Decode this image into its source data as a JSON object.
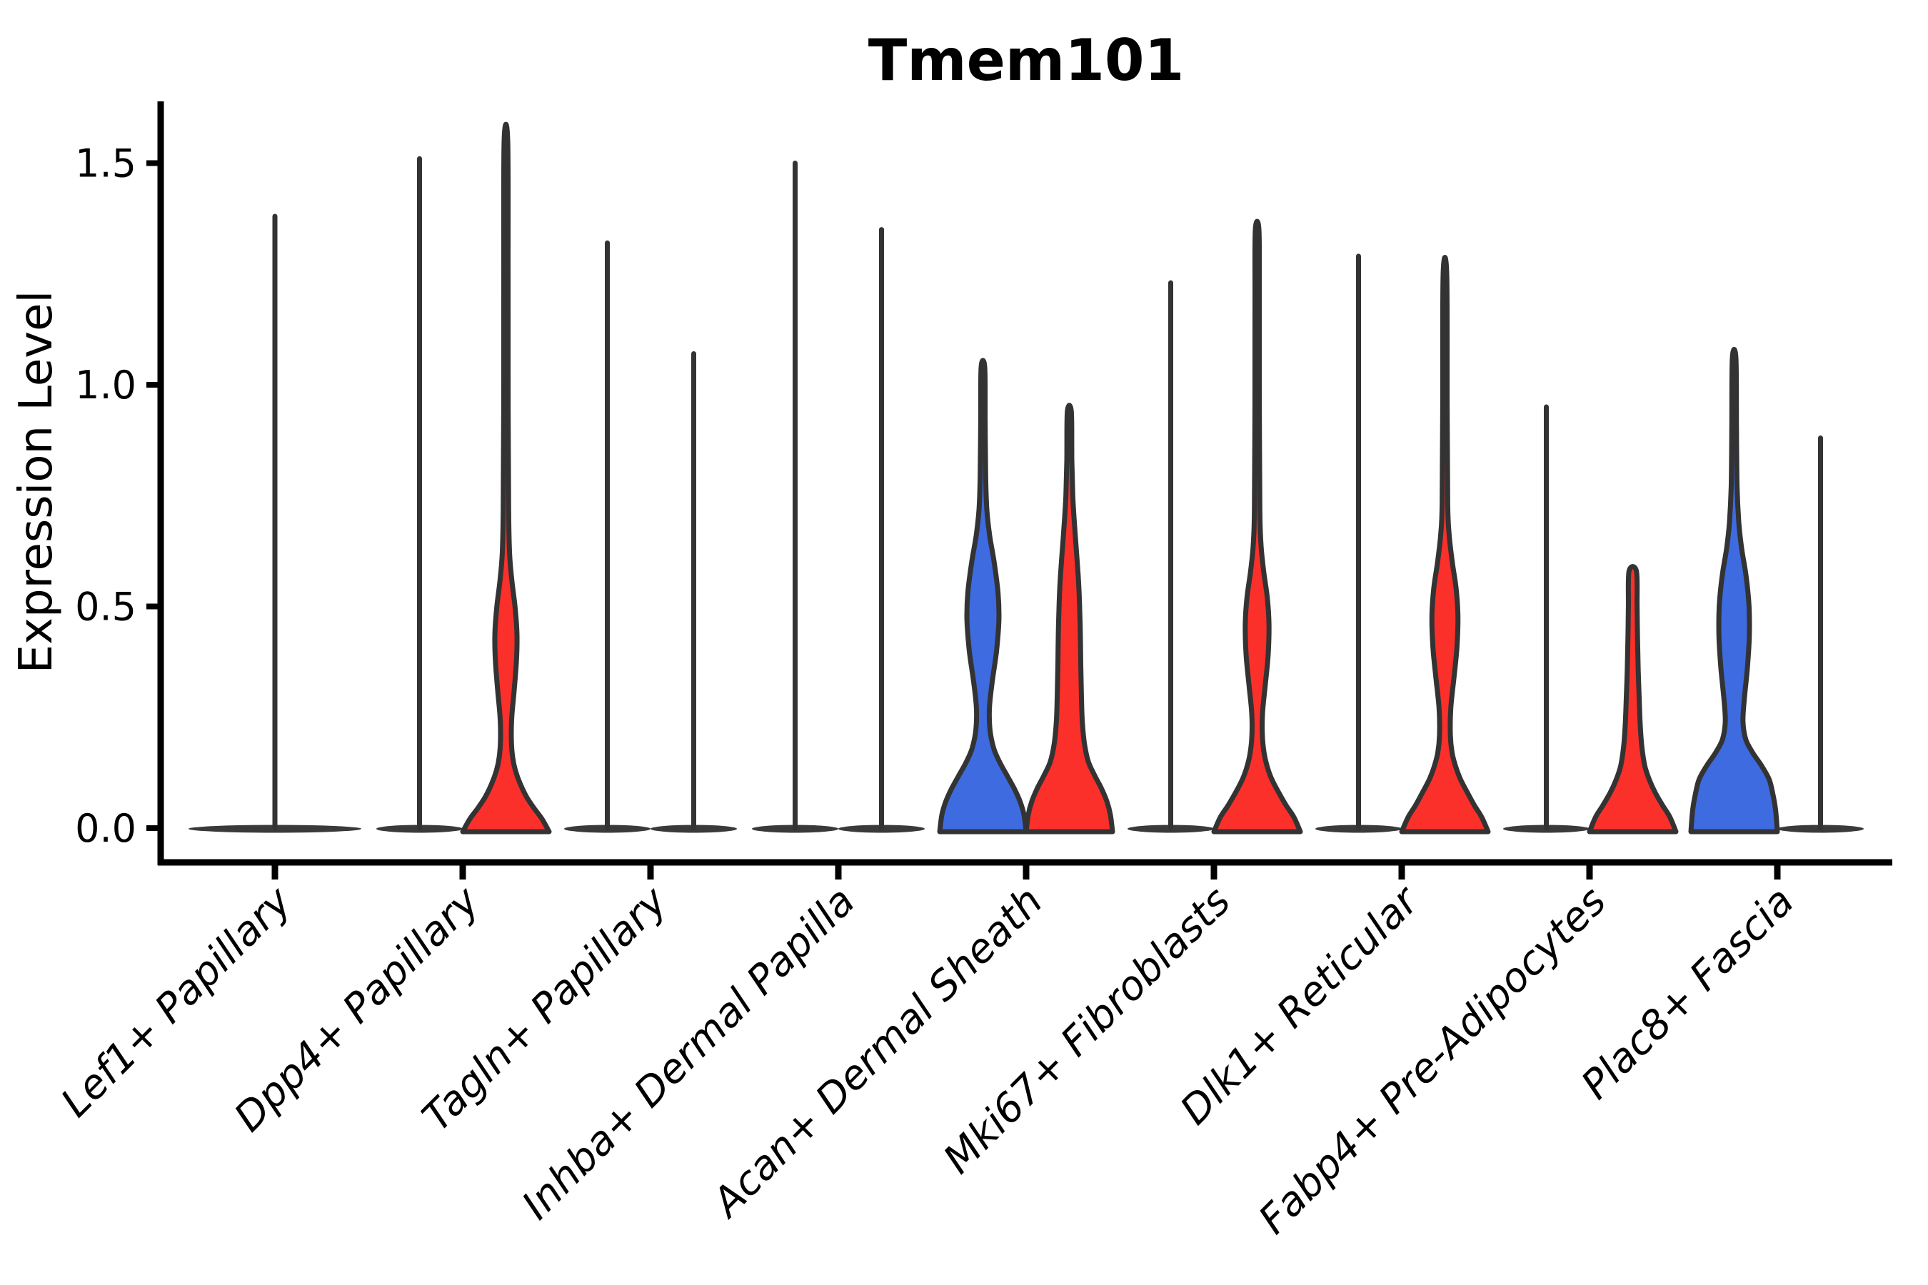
{
  "title": "Tmem101",
  "y_axis": {
    "label": "Expression Level",
    "ticks": [
      {
        "value": 0.0,
        "label": "0.0"
      },
      {
        "value": 0.5,
        "label": "0.5"
      },
      {
        "value": 1.0,
        "label": "1.0"
      },
      {
        "value": 1.5,
        "label": "1.5"
      }
    ]
  },
  "colors": {
    "red_fill": "#FB302B",
    "blue_fill": "#3E6BE0",
    "outline": "#333333",
    "flat_lens": "#3a3a3a",
    "axis": "#000000",
    "text": "#000000",
    "background": "#ffffff"
  },
  "chart_data": {
    "type": "violin",
    "title": "Tmem101",
    "xlabel": "",
    "ylabel": "Expression Level",
    "ylim": [
      0,
      1.64
    ],
    "grid": false,
    "legend": "none",
    "split": {
      "left_color_name": "blue",
      "right_color_name": "red"
    },
    "categories": [
      "Lef1+ Papillary",
      "Dpp4+ Papillary",
      "Tagln+ Papillary",
      "Inhba+ Dermal Papilla",
      "Acan+ Dermal Sheath",
      "Mki67+ Fibroblasts",
      "Dlk1+ Reticular",
      "Fabp4+ Pre-Adipocytes",
      "Plac8+ Fascia"
    ],
    "groups": [
      {
        "category": "Lef1+ Papillary",
        "violins": [
          {
            "side": "center",
            "fill": "none",
            "shape": "spike",
            "max_expression": 1.38,
            "span": 2
          }
        ]
      },
      {
        "category": "Dpp4+ Papillary",
        "violins": [
          {
            "side": "left",
            "fill": "none",
            "shape": "spike",
            "max_expression": 1.51
          },
          {
            "side": "right",
            "fill": "red",
            "shape": "violin",
            "max_expression": 1.55,
            "density_profile": [
              [
                0,
                1.0
              ],
              [
                0.02,
                0.84
              ],
              [
                0.045,
                0.65
              ],
              [
                0.07,
                0.48
              ],
              [
                0.1,
                0.33
              ],
              [
                0.13,
                0.22
              ],
              [
                0.16,
                0.155
              ],
              [
                0.2,
                0.125
              ],
              [
                0.25,
                0.135
              ],
              [
                0.31,
                0.19
              ],
              [
                0.38,
                0.245
              ],
              [
                0.44,
                0.255
              ],
              [
                0.5,
                0.21
              ],
              [
                0.56,
                0.135
              ],
              [
                0.62,
                0.085
              ],
              [
                0.72,
                0.062
              ],
              [
                0.95,
                0.052
              ],
              [
                1.25,
                0.05
              ],
              [
                1.55,
                0.042
              ]
            ]
          }
        ]
      },
      {
        "category": "Tagln+ Papillary",
        "violins": [
          {
            "side": "left",
            "fill": "none",
            "shape": "spike",
            "max_expression": 1.32
          },
          {
            "side": "right",
            "fill": "none",
            "shape": "spike",
            "max_expression": 1.07
          }
        ]
      },
      {
        "category": "Inhba+ Dermal Papilla",
        "violins": [
          {
            "side": "left",
            "fill": "none",
            "shape": "spike",
            "max_expression": 1.5
          },
          {
            "side": "right",
            "fill": "none",
            "shape": "spike",
            "max_expression": 1.35
          }
        ]
      },
      {
        "category": "Acan+ Dermal Sheath",
        "violins": [
          {
            "side": "left",
            "fill": "blue",
            "shape": "violin",
            "max_expression": 1.04,
            "density_profile": [
              [
                0,
                1.0
              ],
              [
                0.03,
                0.95
              ],
              [
                0.06,
                0.86
              ],
              [
                0.09,
                0.72
              ],
              [
                0.12,
                0.55
              ],
              [
                0.15,
                0.38
              ],
              [
                0.18,
                0.25
              ],
              [
                0.22,
                0.165
              ],
              [
                0.27,
                0.15
              ],
              [
                0.33,
                0.215
              ],
              [
                0.4,
                0.315
              ],
              [
                0.47,
                0.37
              ],
              [
                0.53,
                0.35
              ],
              [
                0.6,
                0.26
              ],
              [
                0.66,
                0.155
              ],
              [
                0.72,
                0.09
              ],
              [
                0.8,
                0.062
              ],
              [
                0.92,
                0.052
              ],
              [
                1.04,
                0.042
              ]
            ]
          },
          {
            "side": "right",
            "fill": "red",
            "shape": "violin",
            "max_expression": 0.94,
            "density_profile": [
              [
                0,
                1.0
              ],
              [
                0.03,
                0.95
              ],
              [
                0.06,
                0.87
              ],
              [
                0.09,
                0.74
              ],
              [
                0.12,
                0.58
              ],
              [
                0.15,
                0.44
              ],
              [
                0.19,
                0.35
              ],
              [
                0.24,
                0.3
              ],
              [
                0.3,
                0.28
              ],
              [
                0.37,
                0.265
              ],
              [
                0.44,
                0.255
              ],
              [
                0.51,
                0.235
              ],
              [
                0.57,
                0.205
              ],
              [
                0.63,
                0.16
              ],
              [
                0.69,
                0.115
              ],
              [
                0.75,
                0.08
              ],
              [
                0.83,
                0.058
              ],
              [
                0.94,
                0.046
              ]
            ]
          }
        ]
      },
      {
        "category": "Mki67+ Fibroblasts",
        "violins": [
          {
            "side": "left",
            "fill": "none",
            "shape": "spike",
            "max_expression": 1.23
          },
          {
            "side": "right",
            "fill": "red",
            "shape": "violin",
            "max_expression": 1.35,
            "density_profile": [
              [
                0,
                1.0
              ],
              [
                0.025,
                0.85
              ],
              [
                0.05,
                0.68
              ],
              [
                0.08,
                0.5
              ],
              [
                0.11,
                0.34
              ],
              [
                0.14,
                0.23
              ],
              [
                0.17,
                0.16
              ],
              [
                0.21,
                0.12
              ],
              [
                0.26,
                0.125
              ],
              [
                0.32,
                0.185
              ],
              [
                0.39,
                0.255
              ],
              [
                0.46,
                0.275
              ],
              [
                0.52,
                0.235
              ],
              [
                0.58,
                0.15
              ],
              [
                0.64,
                0.09
              ],
              [
                0.72,
                0.062
              ],
              [
                0.95,
                0.052
              ],
              [
                1.2,
                0.05
              ],
              [
                1.35,
                0.042
              ]
            ]
          }
        ]
      },
      {
        "category": "Dlk1+ Reticular",
        "violins": [
          {
            "side": "left",
            "fill": "none",
            "shape": "spike",
            "max_expression": 1.29
          },
          {
            "side": "right",
            "fill": "red",
            "shape": "violin",
            "max_expression": 1.25,
            "density_profile": [
              [
                0,
                1.0
              ],
              [
                0.025,
                0.85
              ],
              [
                0.05,
                0.69
              ],
              [
                0.08,
                0.52
              ],
              [
                0.11,
                0.36
              ],
              [
                0.14,
                0.245
              ],
              [
                0.17,
                0.165
              ],
              [
                0.21,
                0.125
              ],
              [
                0.27,
                0.135
              ],
              [
                0.34,
                0.21
              ],
              [
                0.41,
                0.28
              ],
              [
                0.48,
                0.3
              ],
              [
                0.54,
                0.26
              ],
              [
                0.6,
                0.17
              ],
              [
                0.66,
                0.1
              ],
              [
                0.73,
                0.065
              ],
              [
                0.95,
                0.052
              ],
              [
                1.25,
                0.042
              ]
            ]
          }
        ]
      },
      {
        "category": "Fabp4+ Pre-Adipocytes",
        "violins": [
          {
            "side": "left",
            "fill": "none",
            "shape": "spike",
            "max_expression": 0.95
          },
          {
            "side": "right",
            "fill": "red",
            "shape": "violin",
            "max_expression": 0.58,
            "density_profile": [
              [
                0,
                1.0
              ],
              [
                0.025,
                0.86
              ],
              [
                0.05,
                0.7
              ],
              [
                0.08,
                0.52
              ],
              [
                0.11,
                0.38
              ],
              [
                0.14,
                0.28
              ],
              [
                0.18,
                0.215
              ],
              [
                0.23,
                0.175
              ],
              [
                0.29,
                0.15
              ],
              [
                0.36,
                0.125
              ],
              [
                0.43,
                0.11
              ],
              [
                0.5,
                0.1
              ],
              [
                0.58,
                0.085
              ]
            ]
          }
        ]
      },
      {
        "category": "Plac8+ Fascia",
        "violins": [
          {
            "side": "left",
            "fill": "blue",
            "shape": "violin",
            "max_expression": 1.06,
            "density_profile": [
              [
                0,
                1.0
              ],
              [
                0.04,
                0.96
              ],
              [
                0.08,
                0.89
              ],
              [
                0.11,
                0.81
              ],
              [
                0.14,
                0.64
              ],
              [
                0.17,
                0.43
              ],
              [
                0.2,
                0.27
              ],
              [
                0.24,
                0.205
              ],
              [
                0.29,
                0.235
              ],
              [
                0.36,
                0.305
              ],
              [
                0.43,
                0.35
              ],
              [
                0.5,
                0.345
              ],
              [
                0.57,
                0.275
              ],
              [
                0.63,
                0.175
              ],
              [
                0.69,
                0.108
              ],
              [
                0.77,
                0.068
              ],
              [
                0.9,
                0.054
              ],
              [
                1.06,
                0.042
              ]
            ]
          },
          {
            "side": "right",
            "fill": "none",
            "shape": "spike",
            "max_expression": 0.88
          }
        ]
      }
    ]
  }
}
